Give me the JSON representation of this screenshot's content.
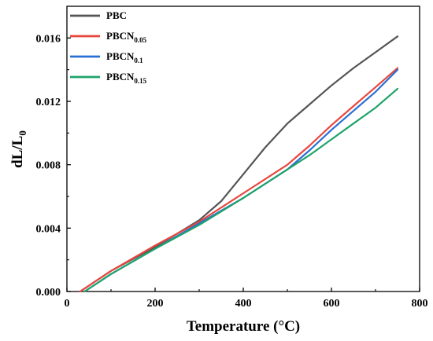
{
  "chart_data": {
    "type": "line",
    "xlabel": "Temperature (°C)",
    "ylabel_main": "dL/L",
    "ylabel_sub": "0",
    "xlim": [
      0,
      800
    ],
    "ylim": [
      0,
      0.018
    ],
    "x_ticks": [
      0,
      200,
      400,
      600,
      800
    ],
    "x_tick_labels": [
      "0",
      "200",
      "400",
      "600",
      "800"
    ],
    "y_ticks": [
      0,
      0.004,
      0.008,
      0.012,
      0.016
    ],
    "y_tick_labels": [
      "0.000",
      "0.004",
      "0.008",
      "0.012",
      "0.016"
    ],
    "grid": false,
    "legend_position": "top-left",
    "series": [
      {
        "name": "PBC",
        "name_main": "PBC",
        "name_sub": "",
        "color": "#555555",
        "x": [
          30,
          100,
          200,
          300,
          350,
          400,
          450,
          500,
          550,
          600,
          650,
          700,
          750
        ],
        "y": [
          0.0,
          0.0013,
          0.0028,
          0.0045,
          0.0057,
          0.0074,
          0.0091,
          0.0106,
          0.0118,
          0.013,
          0.0141,
          0.0151,
          0.0161
        ]
      },
      {
        "name": "PBCN0.05",
        "name_main": "PBCN",
        "name_sub": "0.05",
        "color": "#e8473e",
        "x": [
          30,
          100,
          200,
          300,
          400,
          500,
          550,
          600,
          650,
          700,
          750
        ],
        "y": [
          0.0,
          0.0013,
          0.0029,
          0.0044,
          0.0062,
          0.008,
          0.0092,
          0.0105,
          0.0117,
          0.0129,
          0.0141
        ]
      },
      {
        "name": "PBCN0.1",
        "name_main": "PBCN",
        "name_sub": "0.1",
        "color": "#2a6fd4",
        "x": [
          40,
          100,
          200,
          300,
          400,
          500,
          550,
          600,
          650,
          700,
          750
        ],
        "y": [
          0.0,
          0.0011,
          0.0027,
          0.0043,
          0.0059,
          0.0077,
          0.0089,
          0.0102,
          0.0114,
          0.0126,
          0.014
        ]
      },
      {
        "name": "PBCN0.15",
        "name_main": "PBCN",
        "name_sub": "0.15",
        "color": "#1fa36a",
        "x": [
          40,
          100,
          200,
          300,
          400,
          500,
          550,
          600,
          650,
          700,
          750
        ],
        "y": [
          0.0,
          0.0011,
          0.0027,
          0.0042,
          0.0059,
          0.0077,
          0.0086,
          0.0096,
          0.0106,
          0.0116,
          0.0128
        ]
      }
    ]
  }
}
